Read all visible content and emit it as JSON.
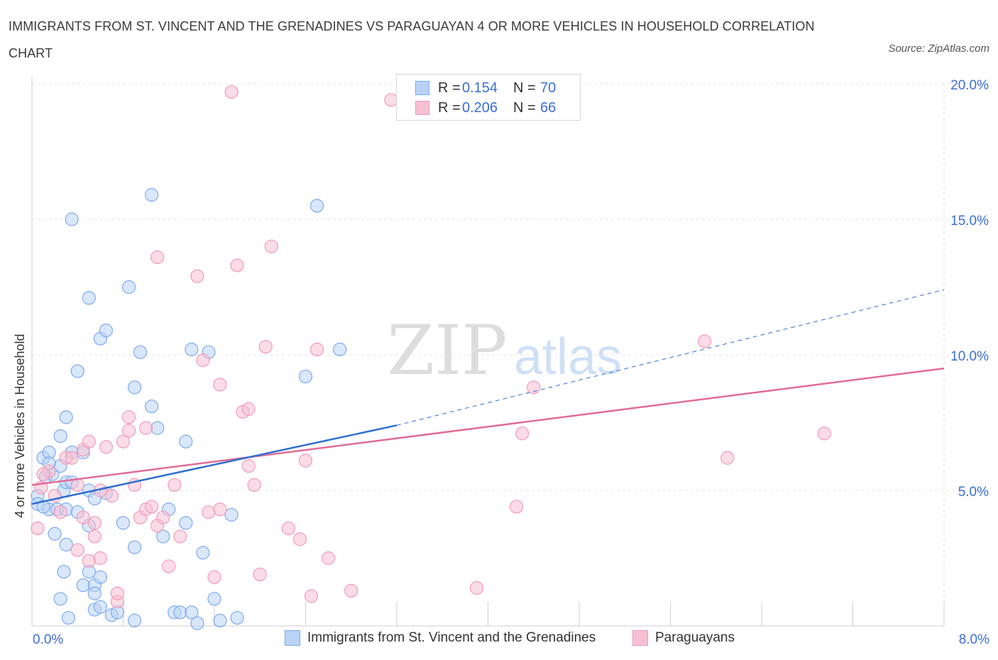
{
  "title": "IMMIGRANTS FROM ST. VINCENT AND THE GRENADINES VS PARAGUAYAN 4 OR MORE VEHICLES IN HOUSEHOLD CORRELATION CHART",
  "source": "Source: ZipAtlas.com",
  "watermark": {
    "zip": "ZIP",
    "atlas": "atlas"
  },
  "legend": {
    "rows": [
      {
        "r_label": "R =",
        "r_value": "0.154",
        "n_label": "N =",
        "n_value": "70",
        "color": "#a9c9f5"
      },
      {
        "r_label": "R =",
        "r_value": "0.206",
        "n_label": "N =",
        "n_value": "66",
        "color": "#f7b8cc"
      }
    ]
  },
  "chart_data": {
    "type": "scatter",
    "ylabel": "4 or more Vehicles in Household",
    "x_tick_labels": [
      "0.0%",
      "8.0%"
    ],
    "y_tick_labels": [
      "5.0%",
      "10.0%",
      "15.0%",
      "20.0%"
    ],
    "y_ticks": [
      5,
      10,
      15,
      20
    ],
    "xlim": [
      0,
      8
    ],
    "ylim": [
      0,
      20
    ],
    "grid": true,
    "legend_position": "bottom",
    "series": [
      {
        "name": "Immigrants from St. Vincent and the Grenadines",
        "color": "#7eaaee",
        "fill": "#b9d3f6",
        "line_color": "#2f6fd0",
        "trend": {
          "x0": 0.0,
          "y0": 4.5,
          "x1": 3.2,
          "y1": 7.4,
          "dash_x1": 8.0,
          "dash_y1": 12.4
        },
        "points": [
          [
            0.05,
            4.8
          ],
          [
            0.05,
            4.5
          ],
          [
            0.1,
            6.2
          ],
          [
            0.12,
            5.5
          ],
          [
            0.15,
            4.3
          ],
          [
            0.15,
            6.4
          ],
          [
            0.18,
            5.6
          ],
          [
            0.2,
            3.4
          ],
          [
            0.22,
            4.3
          ],
          [
            0.25,
            5.9
          ],
          [
            0.28,
            5.0
          ],
          [
            0.3,
            4.3
          ],
          [
            0.25,
            1.0
          ],
          [
            0.25,
            7.0
          ],
          [
            0.28,
            2.0
          ],
          [
            0.3,
            7.7
          ],
          [
            0.3,
            5.3
          ],
          [
            0.35,
            6.4
          ],
          [
            0.35,
            5.3
          ],
          [
            0.3,
            3.0
          ],
          [
            0.32,
            0.3
          ],
          [
            0.35,
            15.0
          ],
          [
            0.4,
            9.4
          ],
          [
            0.45,
            6.4
          ],
          [
            0.45,
            1.5
          ],
          [
            0.5,
            12.1
          ],
          [
            0.5,
            5.0
          ],
          [
            0.5,
            3.7
          ],
          [
            0.5,
            2.0
          ],
          [
            0.55,
            4.7
          ],
          [
            0.55,
            1.5
          ],
          [
            0.55,
            1.2
          ],
          [
            0.55,
            0.6
          ],
          [
            0.6,
            10.6
          ],
          [
            0.6,
            0.7
          ],
          [
            0.65,
            10.9
          ],
          [
            0.65,
            4.9
          ],
          [
            0.7,
            0.4
          ],
          [
            0.75,
            0.5
          ],
          [
            0.8,
            3.8
          ],
          [
            0.85,
            12.5
          ],
          [
            0.9,
            0.2
          ],
          [
            0.9,
            2.9
          ],
          [
            0.9,
            8.8
          ],
          [
            0.95,
            10.1
          ],
          [
            1.05,
            15.9
          ],
          [
            1.05,
            8.1
          ],
          [
            1.1,
            7.3
          ],
          [
            1.15,
            3.3
          ],
          [
            1.2,
            4.3
          ],
          [
            1.25,
            0.5
          ],
          [
            1.3,
            0.5
          ],
          [
            1.35,
            3.8
          ],
          [
            1.35,
            6.8
          ],
          [
            1.4,
            10.2
          ],
          [
            1.4,
            0.5
          ],
          [
            1.45,
            0.1
          ],
          [
            1.5,
            2.7
          ],
          [
            1.55,
            10.1
          ],
          [
            1.6,
            1.0
          ],
          [
            1.65,
            0.2
          ],
          [
            1.75,
            4.1
          ],
          [
            1.8,
            0.3
          ],
          [
            2.4,
            9.2
          ],
          [
            2.5,
            15.5
          ],
          [
            2.7,
            10.2
          ],
          [
            0.1,
            4.4
          ],
          [
            0.15,
            6.0
          ],
          [
            0.4,
            4.2
          ],
          [
            0.6,
            1.8
          ]
        ]
      },
      {
        "name": "Paraguayans",
        "color": "#f29ab8",
        "fill": "#f7c0d2",
        "line_color": "#e06c97",
        "trend": {
          "x0": 0.0,
          "y0": 5.2,
          "x1": 8.0,
          "y1": 9.5
        },
        "points": [
          [
            0.05,
            3.6
          ],
          [
            0.08,
            5.1
          ],
          [
            0.15,
            5.7
          ],
          [
            0.2,
            4.8
          ],
          [
            0.25,
            4.2
          ],
          [
            0.3,
            6.2
          ],
          [
            0.35,
            6.2
          ],
          [
            0.4,
            5.2
          ],
          [
            0.4,
            2.8
          ],
          [
            0.45,
            4.0
          ],
          [
            0.45,
            6.5
          ],
          [
            0.5,
            6.8
          ],
          [
            0.5,
            2.4
          ],
          [
            0.55,
            3.3
          ],
          [
            0.55,
            3.8
          ],
          [
            0.6,
            2.5
          ],
          [
            0.65,
            6.6
          ],
          [
            0.7,
            4.8
          ],
          [
            0.75,
            0.9
          ],
          [
            0.75,
            1.2
          ],
          [
            0.8,
            6.8
          ],
          [
            0.85,
            7.7
          ],
          [
            0.85,
            7.2
          ],
          [
            0.9,
            5.2
          ],
          [
            0.95,
            4.0
          ],
          [
            1.0,
            7.3
          ],
          [
            1.0,
            4.3
          ],
          [
            1.05,
            4.4
          ],
          [
            1.1,
            3.7
          ],
          [
            1.1,
            13.6
          ],
          [
            1.15,
            4.0
          ],
          [
            1.2,
            2.2
          ],
          [
            1.25,
            5.2
          ],
          [
            1.3,
            3.3
          ],
          [
            1.45,
            12.9
          ],
          [
            1.5,
            9.8
          ],
          [
            1.55,
            4.2
          ],
          [
            1.6,
            1.8
          ],
          [
            1.65,
            4.3
          ],
          [
            1.65,
            8.9
          ],
          [
            1.75,
            19.7
          ],
          [
            1.8,
            13.3
          ],
          [
            1.85,
            7.9
          ],
          [
            1.9,
            8.0
          ],
          [
            1.9,
            5.9
          ],
          [
            1.95,
            5.2
          ],
          [
            2.0,
            1.9
          ],
          [
            2.05,
            10.3
          ],
          [
            2.1,
            14.0
          ],
          [
            2.25,
            3.6
          ],
          [
            2.35,
            3.2
          ],
          [
            2.4,
            6.1
          ],
          [
            2.45,
            1.1
          ],
          [
            2.5,
            10.2
          ],
          [
            2.6,
            2.5
          ],
          [
            2.8,
            1.3
          ],
          [
            3.15,
            19.4
          ],
          [
            3.9,
            1.4
          ],
          [
            4.25,
            4.4
          ],
          [
            4.3,
            7.1
          ],
          [
            4.4,
            8.8
          ],
          [
            5.9,
            10.5
          ],
          [
            6.1,
            6.2
          ],
          [
            6.95,
            7.1
          ],
          [
            0.1,
            5.6
          ],
          [
            0.6,
            5.0
          ]
        ]
      }
    ]
  }
}
